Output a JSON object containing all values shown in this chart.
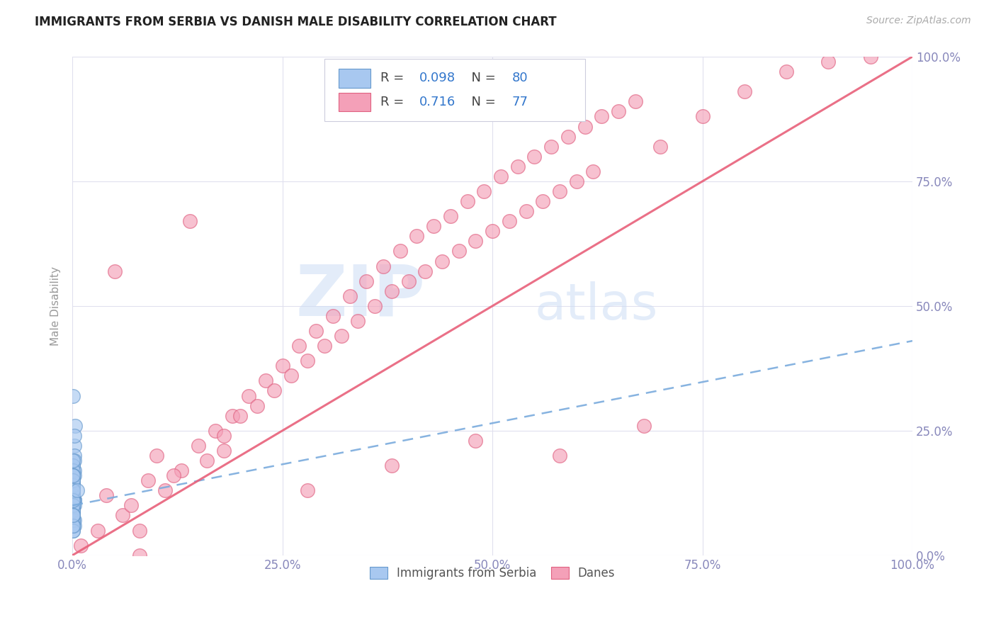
{
  "title": "IMMIGRANTS FROM SERBIA VS DANISH MALE DISABILITY CORRELATION CHART",
  "source": "Source: ZipAtlas.com",
  "ylabel": "Male Disability",
  "xlim": [
    0,
    1
  ],
  "ylim": [
    0,
    1
  ],
  "xtick_vals": [
    0.0,
    0.25,
    0.5,
    0.75,
    1.0
  ],
  "xtick_labels": [
    "0.0%",
    "25.0%",
    "50.0%",
    "75.0%",
    "100.0%"
  ],
  "ytick_labels": [
    "0.0%",
    "25.0%",
    "50.0%",
    "75.0%",
    "100.0%"
  ],
  "blue_R": 0.098,
  "blue_N": 80,
  "pink_R": 0.716,
  "pink_N": 77,
  "blue_color": "#a8c8f0",
  "pink_color": "#f4a0b8",
  "blue_edge_color": "#6699cc",
  "pink_edge_color": "#e06080",
  "blue_line_color": "#7aabdd",
  "pink_line_color": "#e8607a",
  "watermark_zip": "ZIP",
  "watermark_atlas": "atlas",
  "legend_label_blue": "Immigrants from Serbia",
  "legend_label_pink": "Danes",
  "title_color": "#222222",
  "axis_label_color": "#8888bb",
  "grid_color": "#e0e0ee",
  "bg_color": "#ffffff",
  "blue_scatter_x": [
    0.001,
    0.002,
    0.001,
    0.003,
    0.001,
    0.002,
    0.001,
    0.001,
    0.002,
    0.001,
    0.002,
    0.001,
    0.001,
    0.002,
    0.001,
    0.001,
    0.001,
    0.002,
    0.001,
    0.001,
    0.001,
    0.001,
    0.002,
    0.001,
    0.001,
    0.001,
    0.001,
    0.002,
    0.001,
    0.001,
    0.001,
    0.002,
    0.001,
    0.001,
    0.001,
    0.001,
    0.002,
    0.001,
    0.001,
    0.001,
    0.001,
    0.001,
    0.001,
    0.002,
    0.001,
    0.001,
    0.001,
    0.001,
    0.001,
    0.001,
    0.001,
    0.001,
    0.001,
    0.001,
    0.001,
    0.001,
    0.001,
    0.002,
    0.001,
    0.001,
    0.001,
    0.001,
    0.001,
    0.001,
    0.001,
    0.001,
    0.001,
    0.001,
    0.001,
    0.001,
    0.001,
    0.001,
    0.001,
    0.001,
    0.001,
    0.001,
    0.001,
    0.001,
    0.001,
    0.006
  ],
  "blue_scatter_y": [
    0.32,
    0.22,
    0.18,
    0.26,
    0.16,
    0.2,
    0.14,
    0.12,
    0.17,
    0.13,
    0.24,
    0.15,
    0.11,
    0.19,
    0.14,
    0.1,
    0.09,
    0.16,
    0.12,
    0.13,
    0.1,
    0.15,
    0.11,
    0.08,
    0.13,
    0.18,
    0.14,
    0.11,
    0.09,
    0.17,
    0.12,
    0.1,
    0.14,
    0.09,
    0.16,
    0.07,
    0.11,
    0.13,
    0.08,
    0.15,
    0.1,
    0.08,
    0.12,
    0.06,
    0.14,
    0.09,
    0.13,
    0.07,
    0.12,
    0.1,
    0.19,
    0.08,
    0.11,
    0.09,
    0.14,
    0.05,
    0.09,
    0.07,
    0.11,
    0.16,
    0.09,
    0.07,
    0.13,
    0.11,
    0.06,
    0.09,
    0.07,
    0.15,
    0.11,
    0.08,
    0.13,
    0.06,
    0.1,
    0.05,
    0.08,
    0.06,
    0.16,
    0.11,
    0.08,
    0.13
  ],
  "pink_scatter_x": [
    0.01,
    0.03,
    0.06,
    0.04,
    0.07,
    0.09,
    0.11,
    0.13,
    0.08,
    0.1,
    0.05,
    0.12,
    0.15,
    0.14,
    0.17,
    0.19,
    0.16,
    0.21,
    0.18,
    0.23,
    0.2,
    0.25,
    0.22,
    0.27,
    0.24,
    0.29,
    0.26,
    0.31,
    0.28,
    0.33,
    0.3,
    0.35,
    0.32,
    0.37,
    0.34,
    0.39,
    0.36,
    0.41,
    0.38,
    0.43,
    0.4,
    0.45,
    0.42,
    0.47,
    0.44,
    0.49,
    0.46,
    0.51,
    0.48,
    0.53,
    0.5,
    0.55,
    0.52,
    0.57,
    0.54,
    0.59,
    0.56,
    0.61,
    0.58,
    0.63,
    0.6,
    0.65,
    0.62,
    0.67,
    0.7,
    0.75,
    0.8,
    0.85,
    0.9,
    0.95,
    0.38,
    0.28,
    0.18,
    0.08,
    0.48,
    0.58,
    0.68
  ],
  "pink_scatter_y": [
    0.02,
    0.05,
    0.08,
    0.12,
    0.1,
    0.15,
    0.13,
    0.17,
    0.05,
    0.2,
    0.57,
    0.16,
    0.22,
    0.67,
    0.25,
    0.28,
    0.19,
    0.32,
    0.24,
    0.35,
    0.28,
    0.38,
    0.3,
    0.42,
    0.33,
    0.45,
    0.36,
    0.48,
    0.39,
    0.52,
    0.42,
    0.55,
    0.44,
    0.58,
    0.47,
    0.61,
    0.5,
    0.64,
    0.53,
    0.66,
    0.55,
    0.68,
    0.57,
    0.71,
    0.59,
    0.73,
    0.61,
    0.76,
    0.63,
    0.78,
    0.65,
    0.8,
    0.67,
    0.82,
    0.69,
    0.84,
    0.71,
    0.86,
    0.73,
    0.88,
    0.75,
    0.89,
    0.77,
    0.91,
    0.82,
    0.88,
    0.93,
    0.97,
    0.99,
    1.0,
    0.18,
    0.13,
    0.21,
    0.0,
    0.23,
    0.2,
    0.26
  ],
  "blue_trend_x": [
    0.0,
    1.0
  ],
  "blue_trend_y": [
    0.1,
    0.43
  ],
  "pink_trend_x": [
    0.0,
    1.0
  ],
  "pink_trend_y": [
    0.0,
    1.0
  ]
}
